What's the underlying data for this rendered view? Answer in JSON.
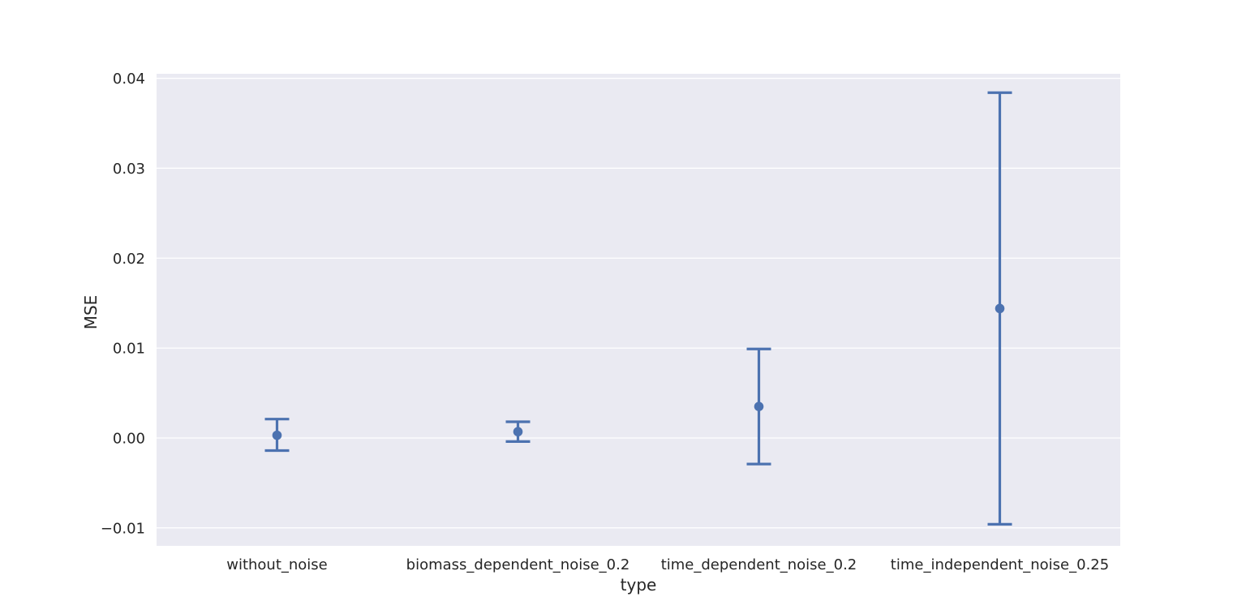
{
  "chart_data": {
    "type": "scatter",
    "title": "",
    "xlabel": "type",
    "ylabel": "MSE",
    "categories": [
      "without_noise",
      "biomass_dependent_noise_0.2",
      "time_dependent_noise_0.2",
      "time_independent_noise_0.25"
    ],
    "values": [
      0.0003,
      0.0007,
      0.0035,
      0.0144
    ],
    "error_low": [
      -0.0014,
      -0.0004,
      -0.0029,
      -0.0096
    ],
    "error_high": [
      0.0021,
      0.0018,
      0.0099,
      0.0384
    ],
    "ylim": [
      -0.012,
      0.0405
    ],
    "yticks": [
      -0.01,
      0.0,
      0.01,
      0.02,
      0.03,
      0.04
    ],
    "ytick_labels": [
      "−0.01",
      "0.00",
      "0.01",
      "0.02",
      "0.03",
      "0.04"
    ],
    "grid": true,
    "colors": {
      "series": "#4c72b0",
      "background": "#eaeaf2",
      "grid": "#ffffff"
    }
  }
}
